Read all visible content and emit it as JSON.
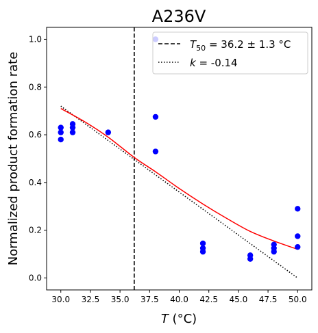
{
  "chart_data": {
    "type": "scatter",
    "title": "A236V",
    "xlabel_var": "T",
    "xlabel_unit": "(°C)",
    "ylabel": "Normalized product formation rate",
    "xlim": [
      28.8,
      51.2
    ],
    "ylim": [
      -0.05,
      1.05
    ],
    "x_ticks": [
      30.0,
      32.5,
      35.0,
      37.5,
      40.0,
      42.5,
      45.0,
      47.5,
      50.0
    ],
    "x_tick_labels": [
      "30.0",
      "32.5",
      "35.0",
      "37.5",
      "40.0",
      "42.5",
      "45.0",
      "47.5",
      "50.0"
    ],
    "y_ticks": [
      0.0,
      0.2,
      0.4,
      0.6,
      0.8,
      1.0
    ],
    "y_tick_labels": [
      "0.0",
      "0.2",
      "0.4",
      "0.6",
      "0.8",
      "1.0"
    ],
    "grid": false,
    "legend_position": "top-right",
    "points_series": {
      "color": "#0000ff",
      "points": [
        {
          "x": 30,
          "y": 0.58
        },
        {
          "x": 30,
          "y": 0.61
        },
        {
          "x": 30,
          "y": 0.63
        },
        {
          "x": 31,
          "y": 0.61
        },
        {
          "x": 31,
          "y": 0.63
        },
        {
          "x": 31,
          "y": 0.645
        },
        {
          "x": 34,
          "y": 0.61
        },
        {
          "x": 38,
          "y": 0.53
        },
        {
          "x": 38,
          "y": 0.675
        },
        {
          "x": 38,
          "y": 1.0
        },
        {
          "x": 42,
          "y": 0.11
        },
        {
          "x": 42,
          "y": 0.125
        },
        {
          "x": 42,
          "y": 0.145
        },
        {
          "x": 46,
          "y": 0.08
        },
        {
          "x": 46,
          "y": 0.095
        },
        {
          "x": 48,
          "y": 0.11
        },
        {
          "x": 48,
          "y": 0.125
        },
        {
          "x": 48,
          "y": 0.14
        },
        {
          "x": 50,
          "y": 0.13
        },
        {
          "x": 50,
          "y": 0.175
        },
        {
          "x": 50,
          "y": 0.29
        }
      ]
    },
    "fit_curve": {
      "color": "#ff0000",
      "points": [
        {
          "x": 30,
          "y": 0.71
        },
        {
          "x": 32,
          "y": 0.655
        },
        {
          "x": 34,
          "y": 0.59
        },
        {
          "x": 36.2,
          "y": 0.505
        },
        {
          "x": 38,
          "y": 0.445
        },
        {
          "x": 40,
          "y": 0.375
        },
        {
          "x": 42,
          "y": 0.31
        },
        {
          "x": 44,
          "y": 0.25
        },
        {
          "x": 46,
          "y": 0.195
        },
        {
          "x": 48,
          "y": 0.155
        },
        {
          "x": 50,
          "y": 0.12
        }
      ]
    },
    "slope_line": {
      "color": "#000000",
      "style": "dotted",
      "points": [
        {
          "x": 30,
          "y": 0.72
        },
        {
          "x": 50,
          "y": 0.0
        }
      ]
    },
    "t50_line": {
      "color": "#000000",
      "style": "dashed",
      "x": 36.2
    },
    "legend": [
      {
        "style": "dashed",
        "var": "T",
        "sub": "50",
        "text": " = 36.2 ± 1.3 °C"
      },
      {
        "style": "dotted",
        "var": "k",
        "sub": "",
        "text": " = -0.14"
      }
    ]
  }
}
